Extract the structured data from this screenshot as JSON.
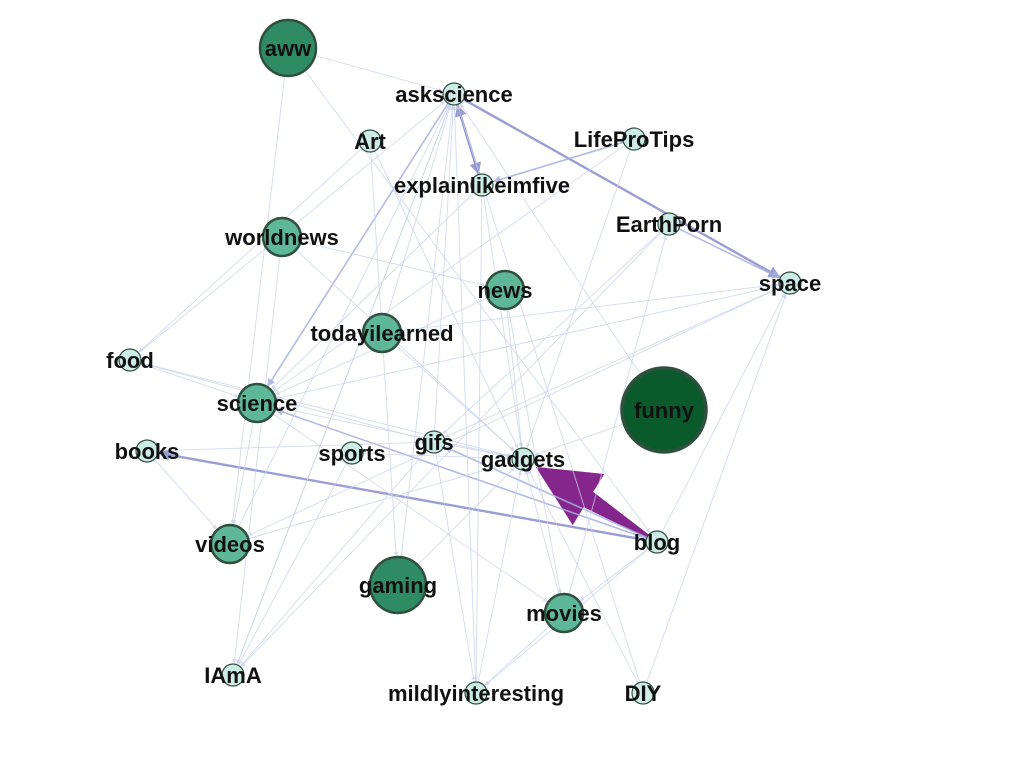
{
  "graph": {
    "colors": {
      "background": "#ffffff",
      "edge_light": "#c9d3ec",
      "edge_mid": "#a6b0dc",
      "edge_strong": "#8a8ecb",
      "edge_highlight": "#7e1a86",
      "node_stroke": "#2f4f3f",
      "node_small": "#cdece6",
      "node_medium": "#5fb79a",
      "node_large": "#2e8b63",
      "node_xlarge": "#0b5a2b"
    },
    "nodes": [
      {
        "id": "aww",
        "label": "aww",
        "weight": 3
      },
      {
        "id": "askscience",
        "label": "askscience",
        "weight": 1
      },
      {
        "id": "Art",
        "label": "Art",
        "weight": 1
      },
      {
        "id": "LifeProTips",
        "label": "LifeProTips",
        "weight": 1
      },
      {
        "id": "explainlikeimfive",
        "label": "explainlikeimfive",
        "weight": 1
      },
      {
        "id": "worldnews",
        "label": "worldnews",
        "weight": 2
      },
      {
        "id": "EarthPorn",
        "label": "EarthPorn",
        "weight": 1
      },
      {
        "id": "news",
        "label": "news",
        "weight": 2
      },
      {
        "id": "space",
        "label": "space",
        "weight": 1
      },
      {
        "id": "todayilearned",
        "label": "todayilearned",
        "weight": 2
      },
      {
        "id": "food",
        "label": "food",
        "weight": 1
      },
      {
        "id": "science",
        "label": "science",
        "weight": 2
      },
      {
        "id": "funny",
        "label": "funny",
        "weight": 5
      },
      {
        "id": "books",
        "label": "books",
        "weight": 1
      },
      {
        "id": "sports",
        "label": "sports",
        "weight": 1
      },
      {
        "id": "gifs",
        "label": "gifs",
        "weight": 1
      },
      {
        "id": "gadgets",
        "label": "gadgets",
        "weight": 1
      },
      {
        "id": "videos",
        "label": "videos",
        "weight": 2
      },
      {
        "id": "blog",
        "label": "blog",
        "weight": 1
      },
      {
        "id": "gaming",
        "label": "gaming",
        "weight": 3
      },
      {
        "id": "movies",
        "label": "movies",
        "weight": 2
      },
      {
        "id": "IAmA",
        "label": "IAmA",
        "weight": 1
      },
      {
        "id": "mildlyinteresting",
        "label": "mildlyinteresting",
        "weight": 1
      },
      {
        "id": "DIY",
        "label": "DIY",
        "weight": 1
      }
    ],
    "edges": [
      {
        "source": "blog",
        "target": "gadgets",
        "strength": 10
      },
      {
        "source": "blog",
        "target": "books",
        "strength": 3
      },
      {
        "source": "blog",
        "target": "science",
        "strength": 2
      },
      {
        "source": "blog",
        "target": "gifs",
        "strength": 2
      },
      {
        "source": "askscience",
        "target": "space",
        "strength": 3
      },
      {
        "source": "askscience",
        "target": "explainlikeimfive",
        "strength": 3
      },
      {
        "source": "explainlikeimfive",
        "target": "askscience",
        "strength": 3
      },
      {
        "source": "askscience",
        "target": "science",
        "strength": 2
      },
      {
        "source": "LifeProTips",
        "target": "explainlikeimfive",
        "strength": 2
      },
      {
        "source": "EarthPorn",
        "target": "space",
        "strength": 2
      },
      {
        "source": "blog",
        "target": "space",
        "strength": 1
      },
      {
        "source": "blog",
        "target": "movies",
        "strength": 1
      },
      {
        "source": "movies",
        "target": "mildlyinteresting",
        "strength": 1
      },
      {
        "source": "blog",
        "target": "mildlyinteresting",
        "strength": 1
      },
      {
        "source": "explainlikeimfive",
        "target": "gadgets",
        "strength": 1
      },
      {
        "source": "news",
        "target": "gadgets",
        "strength": 1
      },
      {
        "source": "gifs",
        "target": "askscience",
        "strength": 1
      },
      {
        "source": "food",
        "target": "askscience",
        "strength": 1
      },
      {
        "source": "science",
        "target": "videos",
        "strength": 1
      },
      {
        "source": "space",
        "target": "gifs",
        "strength": 1
      },
      {
        "source": "todayilearned",
        "target": "space",
        "strength": 1
      },
      {
        "source": "EarthPorn",
        "target": "IAmA",
        "strength": 1
      },
      {
        "source": "askscience",
        "target": "IAmA",
        "strength": 1
      },
      {
        "source": "aww",
        "target": "videos",
        "strength": 1
      },
      {
        "source": "aww",
        "target": "askscience",
        "strength": 1
      },
      {
        "source": "aww",
        "target": "blog",
        "strength": 1
      },
      {
        "source": "Art",
        "target": "gaming",
        "strength": 1
      },
      {
        "source": "Art",
        "target": "food",
        "strength": 1
      },
      {
        "source": "worldnews",
        "target": "news",
        "strength": 1
      },
      {
        "source": "worldnews",
        "target": "gadgets",
        "strength": 1
      },
      {
        "source": "news",
        "target": "science",
        "strength": 1
      },
      {
        "source": "news",
        "target": "movies",
        "strength": 1
      },
      {
        "source": "todayilearned",
        "target": "askscience",
        "strength": 1
      },
      {
        "source": "todayilearned",
        "target": "gadgets",
        "strength": 1
      },
      {
        "source": "food",
        "target": "science",
        "strength": 1
      },
      {
        "source": "food",
        "target": "gadgets",
        "strength": 1
      },
      {
        "source": "books",
        "target": "gifs",
        "strength": 1
      },
      {
        "source": "books",
        "target": "videos",
        "strength": 1
      },
      {
        "source": "sports",
        "target": "gadgets",
        "strength": 1
      },
      {
        "source": "sports",
        "target": "IAmA",
        "strength": 1
      },
      {
        "source": "gifs",
        "target": "gadgets",
        "strength": 1
      },
      {
        "source": "gifs",
        "target": "mildlyinteresting",
        "strength": 1
      },
      {
        "source": "videos",
        "target": "gadgets",
        "strength": 1
      },
      {
        "source": "videos",
        "target": "askscience",
        "strength": 1
      },
      {
        "source": "gaming",
        "target": "gadgets",
        "strength": 1
      },
      {
        "source": "gaming",
        "target": "askscience",
        "strength": 1
      },
      {
        "source": "movies",
        "target": "gadgets",
        "strength": 1
      },
      {
        "source": "movies",
        "target": "EarthPorn",
        "strength": 1
      },
      {
        "source": "IAmA",
        "target": "askscience",
        "strength": 1
      },
      {
        "source": "IAmA",
        "target": "gifs",
        "strength": 1
      },
      {
        "source": "mildlyinteresting",
        "target": "askscience",
        "strength": 1
      },
      {
        "source": "mildlyinteresting",
        "target": "gadgets",
        "strength": 1
      },
      {
        "source": "DIY",
        "target": "askscience",
        "strength": 1
      },
      {
        "source": "DIY",
        "target": "space",
        "strength": 1
      },
      {
        "source": "DIY",
        "target": "gadgets",
        "strength": 1
      },
      {
        "source": "funny",
        "target": "gadgets",
        "strength": 1
      },
      {
        "source": "funny",
        "target": "askscience",
        "strength": 1
      },
      {
        "source": "LifeProTips",
        "target": "gadgets",
        "strength": 1
      },
      {
        "source": "LifeProTips",
        "target": "science",
        "strength": 1
      },
      {
        "source": "explainlikeimfive",
        "target": "science",
        "strength": 1
      },
      {
        "source": "explainlikeimfive",
        "target": "mildlyinteresting",
        "strength": 1
      },
      {
        "source": "space",
        "target": "science",
        "strength": 1
      },
      {
        "source": "space",
        "target": "videos",
        "strength": 1
      },
      {
        "source": "worldnews",
        "target": "IAmA",
        "strength": 1
      },
      {
        "source": "science",
        "target": "gadgets",
        "strength": 1
      },
      {
        "source": "science",
        "target": "movies",
        "strength": 1
      },
      {
        "source": "EarthPorn",
        "target": "gifs",
        "strength": 1
      },
      {
        "source": "Art",
        "target": "gadgets",
        "strength": 1
      },
      {
        "source": "food",
        "target": "gifs",
        "strength": 1
      }
    ]
  }
}
